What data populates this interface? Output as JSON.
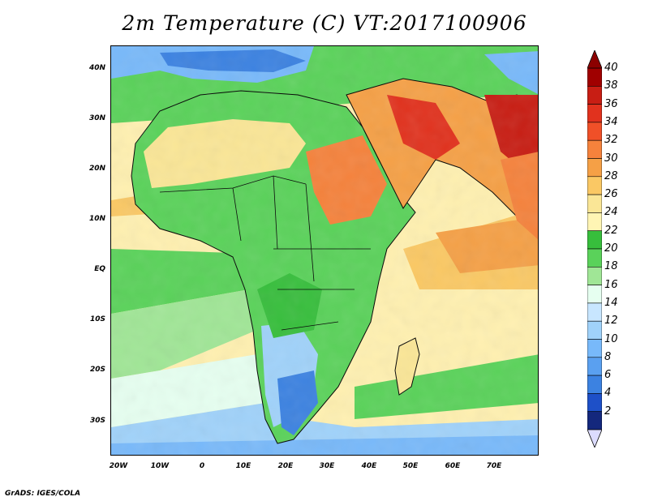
{
  "title": "2m Temperature (C) VT:2017100906",
  "credit": "GrADS: IGES/COLA",
  "lat_labels": [
    "40N",
    "30N",
    "20N",
    "10N",
    "EQ",
    "10S",
    "20S",
    "30S"
  ],
  "lon_labels": [
    "20W",
    "10W",
    "0",
    "10E",
    "20E",
    "30E",
    "40E",
    "50E",
    "60E",
    "70E"
  ],
  "colorbar": {
    "labels": [
      "40",
      "38",
      "36",
      "34",
      "32",
      "30",
      "28",
      "26",
      "24",
      "22",
      "20",
      "18",
      "16",
      "14",
      "12",
      "10",
      "8",
      "6",
      "4",
      "2"
    ],
    "colors": [
      "#a00000",
      "#c81e14",
      "#e1321e",
      "#f05028",
      "#f5823c",
      "#f5a046",
      "#fac864",
      "#fae696",
      "#fff5b4",
      "#37be3c",
      "#5ad25a",
      "#a0e696",
      "#e6fff0",
      "#c8e6ff",
      "#a0d2fa",
      "#78b9fa",
      "#5aa0f0",
      "#3c82e1",
      "#1e50c8",
      "#14287d"
    ],
    "top_arrow_color": "#8c0000",
    "bottom_arrow_color": "#dcdcff"
  }
}
